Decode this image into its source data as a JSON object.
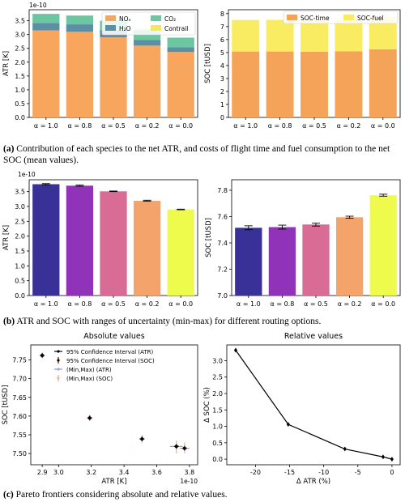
{
  "captions": {
    "a_label": "(a)",
    "a_text": "Contribution of each species to the net ATR, and costs of flight time and fuel consumption to the net SOC (mean values).",
    "b_label": "(b)",
    "b_text": "ATR and SOC with ranges of uncertainty (min-max) for different routing options.",
    "c_label": "(c)",
    "c_text": "Pareto frontiers considering absolute and relative values."
  },
  "colors": {
    "nox": "#f8a55e",
    "h2o": "#5b8fa6",
    "co2": "#6cc7a1",
    "contrail": "#f6e75a",
    "soc_time": "#f6a35a",
    "soc_fuel": "#f9ec63",
    "b_bars": [
      "#3a3198",
      "#9133b8",
      "#d96c94",
      "#f4a36b",
      "#eefb4c"
    ]
  },
  "chart_data": [
    {
      "id": "a_left",
      "type": "bar",
      "stacked": true,
      "categories": [
        "α = 1.0",
        "α = 0.8",
        "α = 0.5",
        "α = 0.2",
        "α = 0.0"
      ],
      "series": [
        {
          "name": "NOₓ",
          "values": [
            3.15,
            3.1,
            2.9,
            2.6,
            2.37
          ]
        },
        {
          "name": "H₂O",
          "values": [
            0.27,
            0.27,
            0.27,
            0.21,
            0.17
          ]
        },
        {
          "name": "CO₂",
          "values": [
            0.33,
            0.32,
            0.33,
            0.37,
            0.35
          ]
        },
        {
          "name": "Contrail",
          "values": [
            0.0,
            0.0,
            0.0,
            0.0,
            0.0
          ]
        }
      ],
      "ylabel": "ATR [K]",
      "scale_label": "1e-10",
      "ylim": [
        0,
        3.9
      ],
      "yticks": [
        "0.0",
        "0.5",
        "1.0",
        "1.5",
        "2.0",
        "2.5",
        "3.0",
        "3.5"
      ],
      "legend": "top-right, 2 columns"
    },
    {
      "id": "a_right",
      "type": "bar",
      "stacked": true,
      "categories": [
        "α = 1.0",
        "α = 0.8",
        "α = 0.5",
        "α = 0.2",
        "α = 0.0"
      ],
      "series": [
        {
          "name": "SOC-time",
          "values": [
            5.08,
            5.08,
            5.07,
            5.1,
            5.25
          ]
        },
        {
          "name": "SOC-fuel",
          "values": [
            2.43,
            2.44,
            2.47,
            2.49,
            2.51
          ]
        }
      ],
      "ylabel": "SOC [tUSD]",
      "ylim": [
        0,
        8.3
      ],
      "yticks": [
        "0",
        "1",
        "2",
        "3",
        "4",
        "5",
        "6",
        "7",
        "8"
      ],
      "legend": "top, 2 columns"
    },
    {
      "id": "b_left",
      "type": "bar",
      "categories": [
        "α = 1.0",
        "α = 0.8",
        "α = 0.5",
        "α = 0.2",
        "α = 0.0"
      ],
      "values": [
        3.75,
        3.7,
        3.51,
        3.19,
        2.9
      ],
      "err_min": [
        3.73,
        3.68,
        3.5,
        3.18,
        2.89
      ],
      "err_max": [
        3.77,
        3.72,
        3.52,
        3.21,
        2.91
      ],
      "ylabel": "ATR [K]",
      "scale_label": "1e-10",
      "ylim": [
        0,
        3.9
      ],
      "yticks": [
        "0.0",
        "0.5",
        "1.0",
        "1.5",
        "2.0",
        "2.5",
        "3.0",
        "3.5"
      ]
    },
    {
      "id": "b_right",
      "type": "bar",
      "categories": [
        "α = 1.0",
        "α = 0.8",
        "α = 0.5",
        "α = 0.2",
        "α = 0.0"
      ],
      "values": [
        7.515,
        7.52,
        7.54,
        7.595,
        7.762
      ],
      "err_min": [
        7.5,
        7.505,
        7.528,
        7.587,
        7.755
      ],
      "err_max": [
        7.53,
        7.535,
        7.55,
        7.603,
        7.77
      ],
      "ylabel": "SOC [tUSD]",
      "ylim": [
        7.0,
        7.88
      ],
      "yticks": [
        "7.0",
        "7.2",
        "7.4",
        "7.6",
        "7.8"
      ]
    },
    {
      "id": "c_left",
      "type": "scatter",
      "title": "Absolute values",
      "points": [
        {
          "x": 2.9,
          "y": 7.762,
          "xmin": 2.89,
          "xmax": 2.91,
          "ymin": 7.755,
          "ymax": 7.77
        },
        {
          "x": 3.19,
          "y": 7.595,
          "xmin": 3.175,
          "xmax": 3.205,
          "ymin": 7.587,
          "ymax": 7.603
        },
        {
          "x": 3.51,
          "y": 7.539,
          "xmin": 3.495,
          "xmax": 3.525,
          "ymin": 7.528,
          "ymax": 7.55
        },
        {
          "x": 3.72,
          "y": 7.519,
          "xmin": 3.68,
          "xmax": 3.76,
          "ymin": 7.5,
          "ymax": 7.535
        },
        {
          "x": 3.77,
          "y": 7.514,
          "xmin": 3.74,
          "xmax": 3.8,
          "ymin": 7.5,
          "ymax": 7.53
        }
      ],
      "xlabel": "ATR [K]",
      "ylabel": "SOC [tUSD]",
      "scale_label": "1e-10",
      "xlim": [
        2.83,
        3.85
      ],
      "ylim": [
        7.47,
        7.79
      ],
      "xticks": [
        "2.9",
        "3.0",
        "3.2",
        "3.4",
        "3.6",
        "3.8"
      ],
      "yticks": [
        "7.50",
        "7.55",
        "7.60",
        "7.65",
        "7.70",
        "7.75"
      ],
      "legend_entries": [
        "95% Confidence Interval (ATR)",
        "95% Confidence Interval (SOC)",
        "(Min,Max) (ATR)",
        "(Min,Max) (SOC)"
      ]
    },
    {
      "id": "c_right",
      "type": "line",
      "title": "Relative values",
      "x": [
        -22.9,
        -15.2,
        -6.9,
        -1.3,
        0.0
      ],
      "y": [
        3.32,
        1.06,
        0.31,
        0.07,
        0.0
      ],
      "xlabel": "Δ ATR (%)",
      "ylabel": "Δ SOC (%)",
      "xlim": [
        -24.2,
        1.2
      ],
      "ylim": [
        -0.17,
        3.48
      ],
      "xticks": [
        "-20",
        "-15",
        "-10",
        "-5",
        "0"
      ],
      "yticks": [
        "0.0",
        "0.5",
        "1.0",
        "1.5",
        "2.0",
        "2.5",
        "3.0"
      ]
    }
  ]
}
